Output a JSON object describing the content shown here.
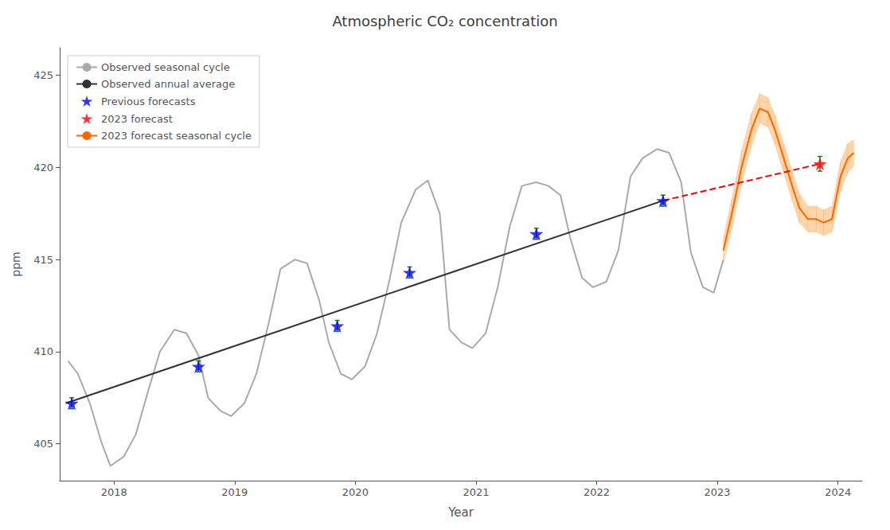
{
  "chart_data": {
    "type": "line",
    "title": "Atmospheric CO₂ concentration",
    "xlabel": "Year",
    "ylabel": "ppm",
    "xlim": [
      2017.55,
      2024.2
    ],
    "ylim": [
      403.0,
      426.5
    ],
    "xticks": [
      2018,
      2019,
      2020,
      2021,
      2022,
      2023,
      2024
    ],
    "yticks": [
      405,
      410,
      415,
      420,
      425
    ],
    "grid": false,
    "legend": "upper left",
    "series": [
      {
        "name": "Observed seasonal cycle",
        "type": "line",
        "line_style": "solid",
        "color": "#aaaaaa",
        "x": [
          2017.62,
          2017.7,
          2017.8,
          2017.9,
          2017.97,
          2018.08,
          2018.18,
          2018.28,
          2018.38,
          2018.5,
          2018.6,
          2018.7,
          2018.78,
          2018.88,
          2018.97,
          2019.08,
          2019.18,
          2019.28,
          2019.38,
          2019.5,
          2019.6,
          2019.7,
          2019.78,
          2019.88,
          2019.97,
          2020.08,
          2020.18,
          2020.28,
          2020.38,
          2020.5,
          2020.6,
          2020.7,
          2020.78,
          2020.88,
          2020.97,
          2021.08,
          2021.18,
          2021.28,
          2021.38,
          2021.5,
          2021.6,
          2021.7,
          2021.78,
          2021.88,
          2021.97,
          2022.08,
          2022.18,
          2022.28,
          2022.38,
          2022.5,
          2022.6,
          2022.7,
          2022.78,
          2022.88,
          2022.97,
          2023.05
        ],
        "values": [
          409.5,
          408.8,
          407.2,
          405.0,
          403.8,
          404.3,
          405.5,
          407.8,
          410.0,
          411.2,
          411.0,
          409.8,
          407.5,
          406.8,
          406.5,
          407.2,
          408.8,
          411.5,
          414.5,
          415.0,
          414.8,
          412.8,
          410.5,
          408.8,
          408.5,
          409.2,
          411.0,
          413.8,
          417.0,
          418.8,
          419.3,
          417.5,
          411.2,
          410.5,
          410.2,
          411.0,
          413.5,
          416.8,
          419.0,
          419.2,
          419.0,
          418.5,
          416.2,
          414.0,
          413.5,
          413.8,
          415.5,
          419.5,
          420.5,
          421.0,
          420.8,
          419.2,
          415.4,
          413.5,
          413.2,
          415.0
        ]
      },
      {
        "name": "Observed annual average",
        "type": "line",
        "line_style": "solid",
        "color": "#333333",
        "x": [
          2017.6,
          2022.55
        ],
        "values": [
          407.2,
          418.2
        ]
      },
      {
        "name": "Previous forecasts",
        "type": "scatter",
        "marker": "star",
        "color": "blue",
        "x": [
          2017.65,
          2018.7,
          2019.85,
          2020.45,
          2021.5,
          2022.55
        ],
        "values": [
          407.2,
          409.2,
          411.4,
          414.3,
          416.4,
          418.2
        ]
      },
      {
        "type": "errorbar",
        "color": "green",
        "x": [
          2017.65,
          2018.7,
          2019.85,
          2020.45,
          2021.5,
          2022.55
        ],
        "values": [
          407.2,
          409.2,
          411.4,
          414.3,
          416.4,
          418.2
        ],
        "error": [
          0.3,
          0.3,
          0.3,
          0.3,
          0.3,
          0.3
        ]
      },
      {
        "name": "2023 forecast",
        "type": "scatter",
        "marker": "star",
        "color": "red",
        "x": [
          2023.85
        ],
        "values": [
          420.2
        ]
      },
      {
        "type": "errorbar",
        "color": "green",
        "x": [
          2023.85
        ],
        "values": [
          420.2
        ],
        "error": [
          0.4
        ]
      },
      {
        "type": "band",
        "color": "#ffb366",
        "x": [
          2023.05,
          2023.12,
          2023.2,
          2023.28,
          2023.35,
          2023.42,
          2023.48,
          2023.55,
          2023.62,
          2023.68,
          2023.75,
          2023.82,
          2023.88,
          2023.95,
          2024.02,
          2024.08,
          2024.13
        ],
        "upper": [
          416.2,
          418.3,
          420.9,
          422.9,
          424.0,
          423.8,
          422.8,
          421.3,
          419.8,
          418.6,
          417.9,
          417.9,
          417.7,
          417.9,
          420.3,
          421.3,
          421.5
        ],
        "lower": [
          414.8,
          416.7,
          419.1,
          421.1,
          422.4,
          422.2,
          421.2,
          419.7,
          418.2,
          417.0,
          416.5,
          416.5,
          416.3,
          416.5,
          418.7,
          419.7,
          420.1
        ]
      },
      {
        "name": "2023 forecast seasonal cycle",
        "type": "line",
        "line_style": "solid",
        "color": "#ff6600",
        "x": [
          2023.05,
          2023.12,
          2023.2,
          2023.28,
          2023.35,
          2023.42,
          2023.48,
          2023.55,
          2023.62,
          2023.68,
          2023.75,
          2023.82,
          2023.88,
          2023.95,
          2024.02,
          2024.08,
          2024.13
        ],
        "values": [
          415.5,
          417.5,
          420.0,
          422.0,
          423.2,
          423.0,
          422.0,
          420.5,
          419.0,
          417.8,
          417.2,
          417.2,
          417.0,
          417.2,
          419.5,
          420.5,
          420.8
        ]
      },
      {
        "type": "line",
        "line_style": "dashed",
        "color": "red",
        "x": [
          2022.55,
          2023.85
        ],
        "values": [
          418.2,
          420.2
        ]
      }
    ]
  }
}
